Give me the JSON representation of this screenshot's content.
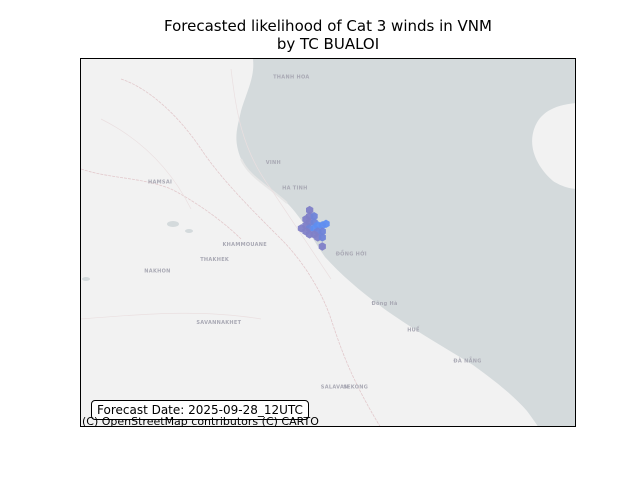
{
  "title": {
    "line1": "Forecasted likelihood of Cat 3 winds in VNM",
    "line2": "by TC BUALOI"
  },
  "forecast_label": "Forecast Date: 2025-09-28_12UTC",
  "attribution": "(C) OpenStreetMap contributors (C) CARTO",
  "colors": {
    "sea": "#d4dadc",
    "land": "#f2f2f2",
    "hex_low": "#7f7fc7",
    "hex_mid": "#6f84d8",
    "hex_high": "#5f8ef0"
  },
  "places": [
    {
      "name": "THANH HOA",
      "lon": 105.78,
      "lat": 19.8
    },
    {
      "name": "VINH",
      "lon": 105.68,
      "lat": 18.68
    },
    {
      "name": "HA TINH",
      "lon": 105.9,
      "lat": 18.34
    },
    {
      "name": "HAMSAI",
      "lon": 104.1,
      "lat": 18.42
    },
    {
      "name": "KHAMMOUANE",
      "lon": 105.1,
      "lat": 17.6
    },
    {
      "name": "THAKHEK",
      "lon": 104.8,
      "lat": 17.4
    },
    {
      "name": "NAKHON",
      "lon": 104.05,
      "lat": 17.25
    },
    {
      "name": "ĐỒNG HỚI",
      "lon": 106.62,
      "lat": 17.47
    },
    {
      "name": "SAVANNAKHET",
      "lon": 104.75,
      "lat": 16.57
    },
    {
      "name": "Đông Hà",
      "lon": 107.1,
      "lat": 16.82
    },
    {
      "name": "HUẾ",
      "lon": 107.58,
      "lat": 16.47
    },
    {
      "name": "ĐÀ NẴNG",
      "lon": 108.2,
      "lat": 16.06
    },
    {
      "name": "SALAVAN",
      "lon": 106.42,
      "lat": 15.72
    },
    {
      "name": "SEKONG",
      "lon": 106.72,
      "lat": 15.72
    }
  ],
  "hexes": [
    {
      "lon": 106.27,
      "lat": 18.07,
      "level": "low"
    },
    {
      "lon": 106.27,
      "lat": 17.99,
      "level": "low"
    },
    {
      "lon": 106.33,
      "lat": 17.99,
      "level": "mid"
    },
    {
      "lon": 106.27,
      "lat": 17.91,
      "level": "low"
    },
    {
      "lon": 106.33,
      "lat": 17.91,
      "level": "mid"
    },
    {
      "lon": 106.22,
      "lat": 17.87,
      "level": "low"
    },
    {
      "lon": 106.22,
      "lat": 17.95,
      "level": "low"
    },
    {
      "lon": 106.38,
      "lat": 17.87,
      "level": "high"
    },
    {
      "lon": 106.44,
      "lat": 17.87,
      "level": "high"
    },
    {
      "lon": 106.49,
      "lat": 17.89,
      "level": "high"
    },
    {
      "lon": 106.27,
      "lat": 17.83,
      "level": "mid"
    },
    {
      "lon": 106.33,
      "lat": 17.83,
      "level": "high"
    },
    {
      "lon": 106.38,
      "lat": 17.79,
      "level": "mid"
    },
    {
      "lon": 106.44,
      "lat": 17.79,
      "level": "mid"
    },
    {
      "lon": 106.16,
      "lat": 17.83,
      "level": "low"
    },
    {
      "lon": 106.22,
      "lat": 17.79,
      "level": "low"
    },
    {
      "lon": 106.27,
      "lat": 17.75,
      "level": "low"
    },
    {
      "lon": 106.33,
      "lat": 17.75,
      "level": "low"
    },
    {
      "lon": 106.38,
      "lat": 17.71,
      "level": "low"
    },
    {
      "lon": 106.44,
      "lat": 17.71,
      "level": "mid"
    },
    {
      "lon": 106.44,
      "lat": 17.59,
      "level": "low"
    }
  ]
}
